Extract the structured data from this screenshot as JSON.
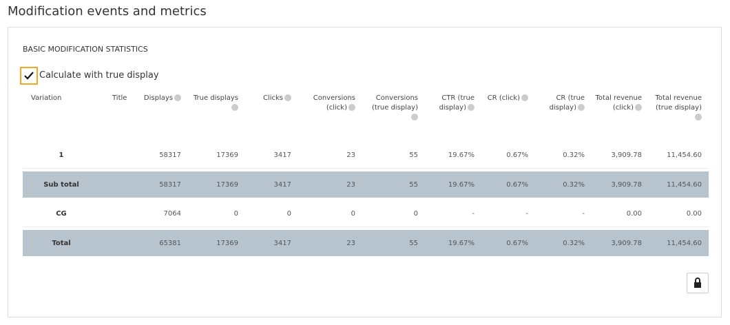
{
  "header": {
    "title": "Modification events and metrics"
  },
  "section": {
    "title": "BASIC MODIFICATION STATISTICS",
    "checkbox_label": "Calculate with true display"
  },
  "table": {
    "columns": [
      "Variation",
      "Title",
      "Displays",
      "True displays",
      "Clicks",
      "Conversions (click)",
      "Conversions (true display)",
      "CTR (true display)",
      "CR (click)",
      "CR (true display)",
      "Total revenue (click)",
      "Total revenue (true display)"
    ],
    "rows": [
      {
        "label": "1",
        "cells": [
          "58317",
          "17369",
          "3417",
          "23",
          "55",
          "19.67%",
          "0.67%",
          "0.32%",
          "3,909.78",
          "11,454.60"
        ]
      },
      {
        "label": "Sub total",
        "cells": [
          "58317",
          "17369",
          "3417",
          "23",
          "55",
          "19.67%",
          "0.67%",
          "0.32%",
          "3,909.78",
          "11,454.60"
        ]
      },
      {
        "label": "CG",
        "cells": [
          "7064",
          "0",
          "0",
          "0",
          "0",
          "-",
          "-",
          "-",
          "0.00",
          "0.00"
        ]
      },
      {
        "label": "Total",
        "cells": [
          "65381",
          "17369",
          "3417",
          "23",
          "55",
          "19.67%",
          "0.67%",
          "0.32%",
          "3,909.78",
          "11,454.60"
        ]
      }
    ]
  }
}
